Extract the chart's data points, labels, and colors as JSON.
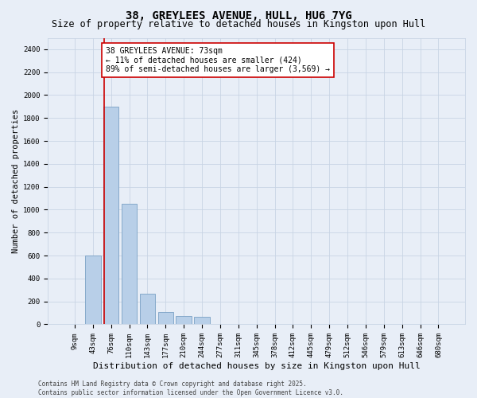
{
  "title": "38, GREYLEES AVENUE, HULL, HU6 7YG",
  "subtitle": "Size of property relative to detached houses in Kingston upon Hull",
  "xlabel": "Distribution of detached houses by size in Kingston upon Hull",
  "ylabel": "Number of detached properties",
  "bar_color": "#b8cfe8",
  "bar_edge_color": "#7aa0c4",
  "background_color": "#e8eef7",
  "grid_color": "#c8d4e4",
  "categories": [
    "9sqm",
    "43sqm",
    "76sqm",
    "110sqm",
    "143sqm",
    "177sqm",
    "210sqm",
    "244sqm",
    "277sqm",
    "311sqm",
    "345sqm",
    "378sqm",
    "412sqm",
    "445sqm",
    "479sqm",
    "512sqm",
    "546sqm",
    "579sqm",
    "613sqm",
    "646sqm",
    "680sqm"
  ],
  "values": [
    0,
    600,
    1900,
    1050,
    270,
    110,
    75,
    65,
    0,
    0,
    0,
    0,
    0,
    0,
    0,
    0,
    0,
    0,
    0,
    0,
    0
  ],
  "ylim": [
    0,
    2500
  ],
  "yticks": [
    0,
    200,
    400,
    600,
    800,
    1000,
    1200,
    1400,
    1600,
    1800,
    2000,
    2200,
    2400
  ],
  "property_line_bar_index": 2,
  "annotation_text": "38 GREYLEES AVENUE: 73sqm\n← 11% of detached houses are smaller (424)\n89% of semi-detached houses are larger (3,569) →",
  "annotation_box_color": "#ffffff",
  "annotation_border_color": "#cc0000",
  "red_line_color": "#cc0000",
  "footer_line1": "Contains HM Land Registry data © Crown copyright and database right 2025.",
  "footer_line2": "Contains public sector information licensed under the Open Government Licence v3.0.",
  "title_fontsize": 10,
  "subtitle_fontsize": 8.5,
  "xlabel_fontsize": 8,
  "ylabel_fontsize": 7.5,
  "tick_fontsize": 6.5,
  "annotation_fontsize": 7,
  "footer_fontsize": 5.5
}
